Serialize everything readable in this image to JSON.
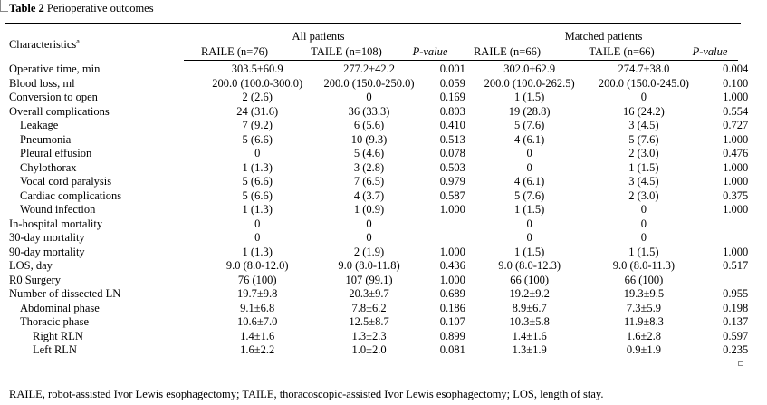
{
  "table": {
    "title_label": "Table 2",
    "title_text": "Perioperative outcomes",
    "characteristics_header": "Characteristics",
    "characteristics_sup": "a",
    "group_all": "All patients",
    "group_matched": "Matched patients",
    "columns": [
      "RAILE (n=76)",
      "TAILE (n=108)",
      "P-value",
      "RAILE (n=66)",
      "TAILE (n=66)",
      "P-value"
    ],
    "rows": [
      {
        "label": "Operative time, min",
        "indent": 0,
        "cells": [
          "303.5±60.9",
          "277.2±42.2",
          "0.001",
          "302.0±62.9",
          "274.7±38.0",
          "0.004"
        ]
      },
      {
        "label": "Blood loss, ml",
        "indent": 0,
        "cells": [
          "200.0 (100.0-300.0)",
          "200.0 (150.0-250.0)",
          "0.059",
          "200.0 (100.0-262.5)",
          "200.0 (150.0-245.0)",
          "0.100"
        ]
      },
      {
        "label": "Conversion to open",
        "indent": 0,
        "cells": [
          "2 (2.6)",
          "0",
          "0.169",
          "1 (1.5)",
          "0",
          "1.000"
        ]
      },
      {
        "label": "Overall complications",
        "indent": 0,
        "cells": [
          "24 (31.6)",
          "36 (33.3)",
          "0.803",
          "19 (28.8)",
          "16 (24.2)",
          "0.554"
        ]
      },
      {
        "label": "Leakage",
        "indent": 1,
        "cells": [
          "7 (9.2)",
          "6 (5.6)",
          "0.410",
          "5 (7.6)",
          "3 (4.5)",
          "0.727"
        ]
      },
      {
        "label": "Pneumonia",
        "indent": 1,
        "cells": [
          "5 (6.6)",
          "10 (9.3)",
          "0.513",
          "4 (6.1)",
          "5 (7.6)",
          "1.000"
        ]
      },
      {
        "label": "Pleural effusion",
        "indent": 1,
        "cells": [
          "0",
          "5 (4.6)",
          "0.078",
          "0",
          "2 (3.0)",
          "0.476"
        ]
      },
      {
        "label": "Chylothorax",
        "indent": 1,
        "cells": [
          "1 (1.3)",
          "3 (2.8)",
          "0.503",
          "0",
          "1 (1.5)",
          "1.000"
        ]
      },
      {
        "label": "Vocal cord paralysis",
        "indent": 1,
        "cells": [
          "5 (6.6)",
          "7 (6.5)",
          "0.979",
          "4 (6.1)",
          "3 (4.5)",
          "1.000"
        ]
      },
      {
        "label": "Cardiac complications",
        "indent": 1,
        "cells": [
          "5 (6.6)",
          "4 (3.7)",
          "0.587",
          "5 (7.6)",
          "2 (3.0)",
          "0.375"
        ]
      },
      {
        "label": "Wound infection",
        "indent": 1,
        "cells": [
          "1 (1.3)",
          "1 (0.9)",
          "1.000",
          "1 (1.5)",
          "0",
          "1.000"
        ]
      },
      {
        "label": "In-hospital mortality",
        "indent": 0,
        "cells": [
          "0",
          "0",
          "",
          "0",
          "0",
          ""
        ]
      },
      {
        "label": "30-day mortality",
        "indent": 0,
        "cells": [
          "0",
          "0",
          "",
          "0",
          "0",
          ""
        ]
      },
      {
        "label": "90-day mortality",
        "indent": 0,
        "cells": [
          "1 (1.3)",
          "2 (1.9)",
          "1.000",
          "1 (1.5)",
          "1 (1.5)",
          "1.000"
        ]
      },
      {
        "label": "LOS, day",
        "indent": 0,
        "cells": [
          "9.0 (8.0-12.0)",
          "9.0 (8.0-11.8)",
          "0.436",
          "9.0 (8.0-12.3)",
          "9.0 (8.0-11.3)",
          "0.517"
        ]
      },
      {
        "label": "R0 Surgery",
        "indent": 0,
        "cells": [
          "76 (100)",
          "107 (99.1)",
          "1.000",
          "66 (100)",
          "66 (100)",
          ""
        ]
      },
      {
        "label": "Number of dissected LN",
        "indent": 0,
        "cells": [
          "19.7±9.8",
          "20.3±9.7",
          "0.689",
          "19.2±9.2",
          "19.3±9.5",
          "0.955"
        ]
      },
      {
        "label": "Abdominal phase",
        "indent": 1,
        "cells": [
          "9.1±6.8",
          "7.8±6.2",
          "0.186",
          "8.9±6.7",
          "7.3±5.9",
          "0.198"
        ]
      },
      {
        "label": "Thoracic phase",
        "indent": 1,
        "cells": [
          "10.6±7.0",
          "12.5±8.7",
          "0.107",
          "10.3±5.8",
          "11.9±8.3",
          "0.137"
        ]
      },
      {
        "label": "Right RLN",
        "indent": 2,
        "cells": [
          "1.4±1.6",
          "1.3±2.3",
          "0.899",
          "1.4±1.6",
          "1.6±2.8",
          "0.597"
        ]
      },
      {
        "label": "Left RLN",
        "indent": 2,
        "cells": [
          "1.6±2.2",
          "1.0±2.0",
          "0.081",
          "1.3±1.9",
          "0.9±1.9",
          "0.235"
        ]
      }
    ],
    "footnote": "RAILE, robot-assisted Ivor Lewis esophagectomy; TAILE, thoracoscopic-assisted Ivor Lewis esophagectomy; LOS, length of stay."
  }
}
